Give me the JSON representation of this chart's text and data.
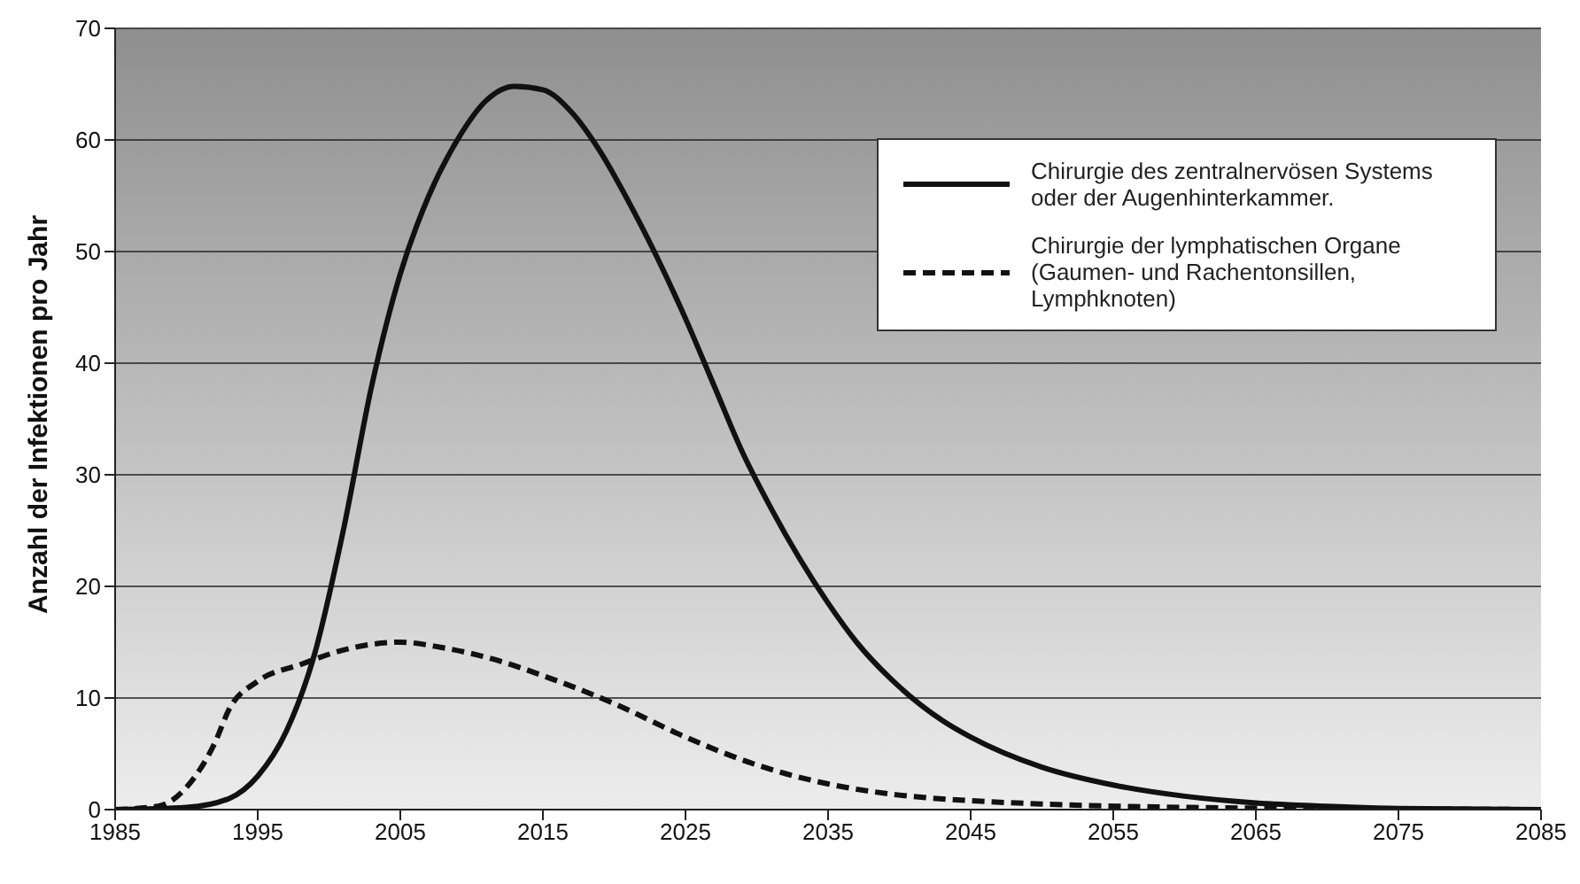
{
  "chart_data": {
    "type": "line",
    "ylabel": "Anzahl der Infektionen pro Jahr",
    "xlim": [
      1985,
      2085
    ],
    "xticks": [
      1985,
      1995,
      2005,
      2015,
      2025,
      2035,
      2045,
      2055,
      2065,
      2075,
      2085
    ],
    "ylim": [
      0,
      70
    ],
    "yticks": [
      0,
      10,
      20,
      30,
      40,
      50,
      60,
      70
    ],
    "grid": "y",
    "legend": "top right",
    "marker": "none",
    "series": [
      {
        "name": "Chirurgie des zentralnervösen Systems oder der Augenhinterkammer.",
        "color": "#111111",
        "line_style": "solid",
        "x": [
          1985,
          1990,
          1993,
          1995,
          1997,
          1999,
          2001,
          2003,
          2005,
          2007,
          2009,
          2011,
          2013,
          2015,
          2017,
          2019,
          2021,
          2023,
          2025,
          2027,
          2029,
          2031,
          2033,
          2035,
          2037,
          2040,
          2043,
          2045,
          2050,
          2055,
          2060,
          2065,
          2070,
          2075,
          2085
        ],
        "values": [
          0,
          0.2,
          1,
          3,
          7,
          14,
          25,
          38,
          48,
          55,
          60,
          63.5,
          64.8,
          64.5,
          62.5,
          59,
          54.5,
          49.5,
          44,
          38,
          32,
          27,
          22.5,
          18.5,
          15,
          11,
          8,
          6.5,
          3.8,
          2.2,
          1.2,
          0.6,
          0.3,
          0.1,
          0
        ]
      },
      {
        "name": "Chirurgie der lymphatischen Organe (Gaumen- und Rachentonsillen, Lymphknoten)",
        "color": "#111111",
        "line_style": "dashed",
        "x": [
          1985,
          1988,
          1990,
          1992,
          1993,
          1995,
          1998,
          2001,
          2005,
          2008,
          2012,
          2015,
          2020,
          2025,
          2030,
          2035,
          2040,
          2045,
          2050,
          2060,
          2070,
          2085
        ],
        "values": [
          0,
          0.3,
          2,
          6,
          9,
          11.5,
          13,
          14.3,
          15,
          14.5,
          13.3,
          12,
          9.5,
          6.5,
          4,
          2.3,
          1.3,
          0.8,
          0.5,
          0.2,
          0.1,
          0
        ]
      }
    ]
  }
}
